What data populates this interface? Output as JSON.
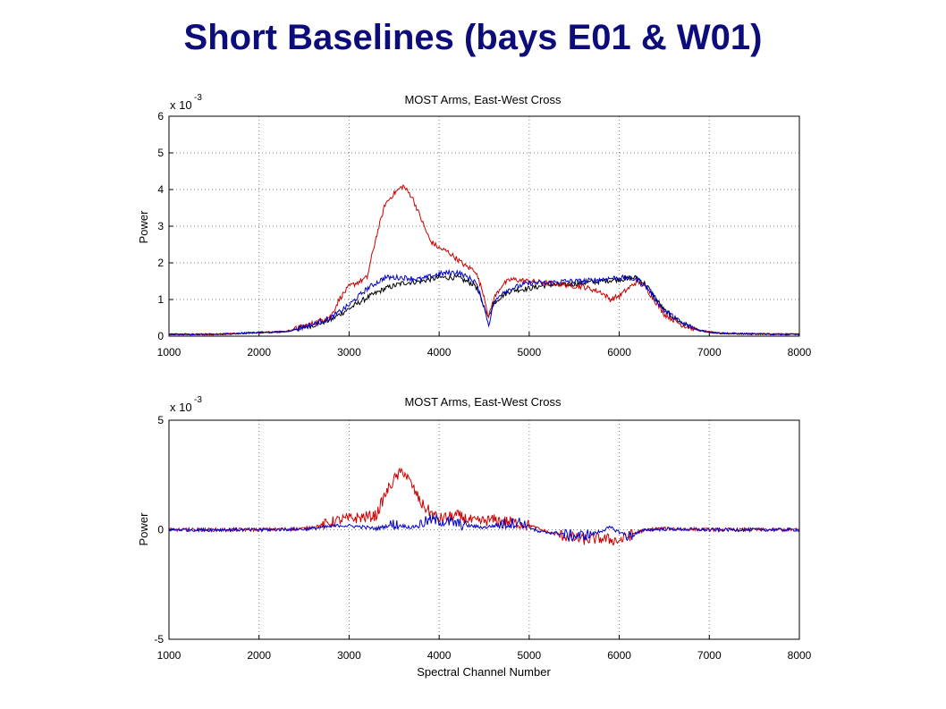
{
  "slide": {
    "title": "Short Baselines (bays E01 & W01)",
    "title_color": "#0c0c7a"
  },
  "colors": {
    "axis": "#000000",
    "grid": "#7f7f7f"
  },
  "chart_data": [
    {
      "type": "line",
      "title": "MOST Arms, East-West Cross",
      "xlabel": "",
      "ylabel": "Power",
      "exponent_label": "x 10",
      "exponent_power": "-3",
      "xlim": [
        1000,
        8000
      ],
      "ylim": [
        0,
        6
      ],
      "xticks": [
        1000,
        2000,
        3000,
        4000,
        5000,
        6000,
        7000,
        8000
      ],
      "yticks": [
        0,
        1,
        2,
        3,
        4,
        5,
        6
      ],
      "grid": true,
      "series": [
        {
          "color": "#000000",
          "x": [
            1000,
            1500,
            2000,
            2300,
            2600,
            2800,
            3000,
            3200,
            3400,
            3600,
            3800,
            4000,
            4200,
            4400,
            4500,
            4550,
            4600,
            4700,
            4800,
            5000,
            5200,
            5400,
            5600,
            5800,
            6000,
            6200,
            6300,
            6500,
            6700,
            6900,
            7100,
            7500,
            8000
          ],
          "y": [
            0.05,
            0.05,
            0.1,
            0.12,
            0.3,
            0.45,
            0.75,
            1.05,
            1.3,
            1.45,
            1.5,
            1.6,
            1.6,
            1.4,
            0.8,
            0.5,
            0.9,
            1.1,
            1.25,
            1.3,
            1.4,
            1.4,
            1.45,
            1.5,
            1.55,
            1.6,
            1.4,
            0.7,
            0.35,
            0.15,
            0.08,
            0.06,
            0.05
          ]
        },
        {
          "color": "#cc0000",
          "x": [
            1000,
            1500,
            2000,
            2300,
            2600,
            2800,
            2900,
            3000,
            3200,
            3300,
            3400,
            3500,
            3550,
            3600,
            3700,
            3800,
            3900,
            4000,
            4100,
            4200,
            4300,
            4400,
            4500,
            4550,
            4600,
            4700,
            4800,
            5000,
            5200,
            5400,
            5600,
            5800,
            5900,
            6000,
            6200,
            6300,
            6500,
            6700,
            6900,
            7100,
            7500,
            8000
          ],
          "y": [
            0.05,
            0.05,
            0.1,
            0.13,
            0.35,
            0.55,
            1.05,
            1.35,
            1.6,
            2.7,
            3.6,
            3.9,
            4.0,
            4.1,
            3.8,
            3.2,
            2.6,
            2.4,
            2.3,
            2.1,
            1.9,
            1.8,
            1.1,
            0.5,
            1.0,
            1.4,
            1.55,
            1.5,
            1.45,
            1.4,
            1.35,
            1.2,
            1.0,
            1.1,
            1.5,
            1.3,
            0.6,
            0.3,
            0.15,
            0.08,
            0.06,
            0.05
          ]
        },
        {
          "color": "#0000cc",
          "x": [
            1000,
            1500,
            2000,
            2300,
            2600,
            2800,
            3000,
            3200,
            3400,
            3600,
            3800,
            4000,
            4200,
            4400,
            4500,
            4550,
            4600,
            4700,
            4800,
            5000,
            5200,
            5400,
            5600,
            5800,
            6000,
            6200,
            6300,
            6500,
            6700,
            6900,
            7100,
            7500,
            8000
          ],
          "y": [
            0.05,
            0.05,
            0.1,
            0.12,
            0.32,
            0.5,
            0.85,
            1.3,
            1.6,
            1.6,
            1.55,
            1.7,
            1.75,
            1.5,
            0.8,
            0.3,
            0.85,
            1.2,
            1.3,
            1.45,
            1.45,
            1.5,
            1.5,
            1.55,
            1.6,
            1.55,
            1.35,
            0.7,
            0.35,
            0.15,
            0.08,
            0.06,
            0.05
          ]
        }
      ]
    },
    {
      "type": "line",
      "title": "MOST Arms, East-West Cross",
      "xlabel": "Spectral Channel Number",
      "ylabel": "Power",
      "exponent_label": "x 10",
      "exponent_power": "-3",
      "xlim": [
        1000,
        8000
      ],
      "ylim": [
        -5,
        5
      ],
      "xticks": [
        1000,
        2000,
        3000,
        4000,
        5000,
        6000,
        7000,
        8000
      ],
      "yticks": [
        -5,
        0,
        5
      ],
      "grid": true,
      "series": [
        {
          "color": "#cc0000",
          "x": [
            1000,
            2000,
            2500,
            2700,
            2900,
            3100,
            3300,
            3400,
            3500,
            3600,
            3700,
            3800,
            3900,
            4000,
            4200,
            4400,
            4600,
            4800,
            5000,
            5200,
            5400,
            5600,
            5800,
            6000,
            6200,
            6400,
            6600,
            7000,
            8000
          ],
          "y": [
            0,
            0,
            0.05,
            0.2,
            0.45,
            0.55,
            0.65,
            1.6,
            2.3,
            2.7,
            2.0,
            1.2,
            0.8,
            0.5,
            0.65,
            0.35,
            0.45,
            0.35,
            0.2,
            -0.1,
            -0.3,
            -0.45,
            -0.4,
            -0.5,
            -0.1,
            0.05,
            0.05,
            0,
            0
          ]
        },
        {
          "color": "#0000cc",
          "x": [
            1000,
            2000,
            2500,
            2700,
            2900,
            3100,
            3300,
            3500,
            3700,
            3900,
            4100,
            4300,
            4500,
            4700,
            4900,
            5100,
            5300,
            5500,
            5700,
            5900,
            6100,
            6300,
            6500,
            7000,
            8000
          ],
          "y": [
            0,
            0,
            0.03,
            0.1,
            0.2,
            0.15,
            0.05,
            0.25,
            0.1,
            0.45,
            0.35,
            0.2,
            0.1,
            0.25,
            0.35,
            -0.1,
            -0.15,
            -0.3,
            -0.2,
            0.1,
            -0.3,
            0,
            0.03,
            0,
            0
          ]
        }
      ]
    }
  ]
}
